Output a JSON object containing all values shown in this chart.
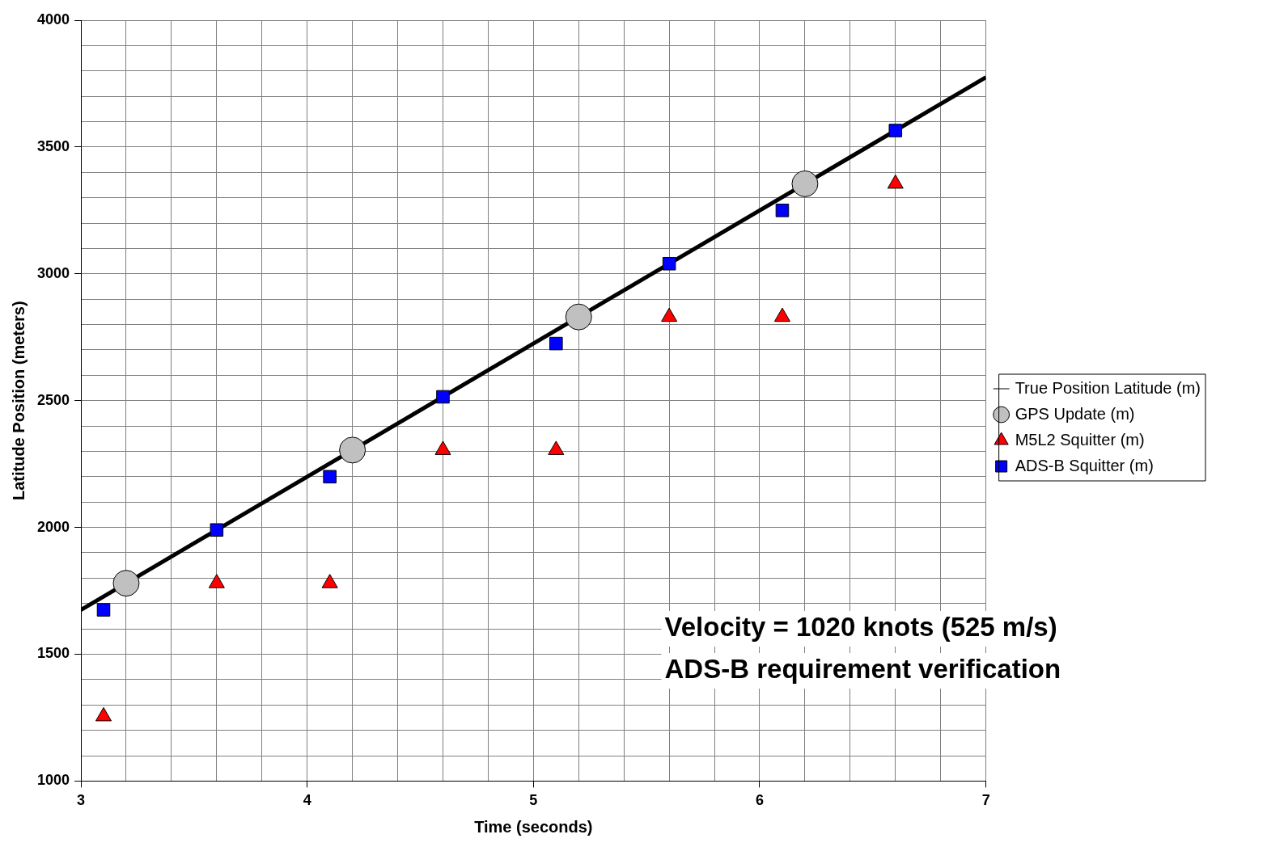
{
  "chart_data": {
    "type": "scatter",
    "xlabel": "Time (seconds)",
    "ylabel": "Latitude Position (meters)",
    "xlim": [
      3,
      7
    ],
    "ylim": [
      1000,
      4000
    ],
    "xticks": [
      3,
      {
        "value": 3.2,
        "label": null
      },
      {
        "value": 3.4,
        "label": null
      },
      {
        "value": 3.6,
        "label": null
      },
      {
        "value": 3.8,
        "label": null
      },
      4,
      {
        "value": 4.2,
        "label": null
      },
      {
        "value": 4.4,
        "label": null
      },
      {
        "value": 4.6,
        "label": null
      },
      {
        "value": 4.8,
        "label": null
      },
      5,
      {
        "value": 5.2,
        "label": null
      },
      {
        "value": 5.4,
        "label": null
      },
      {
        "value": 5.6,
        "label": null
      },
      {
        "value": 5.8,
        "label": null
      },
      6,
      {
        "value": 6.2,
        "label": null
      },
      {
        "value": 6.4,
        "label": null
      },
      {
        "value": 6.6,
        "label": null
      },
      {
        "value": 6.8,
        "label": null
      },
      7
    ],
    "yticks": [
      1000,
      {
        "value": 1100,
        "label": null
      },
      {
        "value": 1200,
        "label": null
      },
      {
        "value": 1300,
        "label": null
      },
      {
        "value": 1400,
        "label": null
      },
      1500,
      {
        "value": 1600,
        "label": null
      },
      {
        "value": 1700,
        "label": null
      },
      {
        "value": 1800,
        "label": null
      },
      {
        "value": 1900,
        "label": null
      },
      2000,
      {
        "value": 2100,
        "label": null
      },
      {
        "value": 2200,
        "label": null
      },
      {
        "value": 2300,
        "label": null
      },
      {
        "value": 2400,
        "label": null
      },
      2500,
      {
        "value": 2600,
        "label": null
      },
      {
        "value": 2700,
        "label": null
      },
      {
        "value": 2800,
        "label": null
      },
      {
        "value": 2900,
        "label": null
      },
      3000,
      {
        "value": 3100,
        "label": null
      },
      {
        "value": 3200,
        "label": null
      },
      {
        "value": 3300,
        "label": null
      },
      {
        "value": 3400,
        "label": null
      },
      3500,
      {
        "value": 3600,
        "label": null
      },
      {
        "value": 3700,
        "label": null
      },
      {
        "value": 3800,
        "label": null
      },
      {
        "value": 3900,
        "label": null
      },
      4000
    ],
    "grid": true,
    "legend": "right",
    "annotations": [
      "Velocity = 1020 knots (525 m/s)",
      "ADS-B requirement verification"
    ],
    "series": [
      {
        "name": "True Position Latitude (m)",
        "type": "line",
        "color": "#000000",
        "marker": "none",
        "x": [
          3,
          7
        ],
        "values": [
          1675,
          3775
        ]
      },
      {
        "name": "GPS Update (m)",
        "color": "#c0c0c0",
        "marker": "circle",
        "x": [
          3.2,
          4.2,
          5.2,
          6.2
        ],
        "values": [
          1780,
          2305,
          2830,
          3355
        ]
      },
      {
        "name": "M5L2 Squitter (m)",
        "color": "#ff0000",
        "marker": "triangle",
        "x": [
          3.1,
          3.6,
          4.1,
          4.6,
          5.1,
          5.6,
          6.1,
          6.6
        ],
        "values": [
          1255,
          1780,
          1780,
          2305,
          2305,
          2830,
          2830,
          3355
        ]
      },
      {
        "name": "ADS-B Squitter (m)",
        "color": "#0000ff",
        "marker": "square",
        "x": [
          3.1,
          3.6,
          4.1,
          4.6,
          5.1,
          5.6,
          6.1,
          6.6
        ],
        "values": [
          1675,
          1990,
          2200,
          2515,
          2725,
          3040,
          3250,
          3565
        ]
      }
    ]
  }
}
